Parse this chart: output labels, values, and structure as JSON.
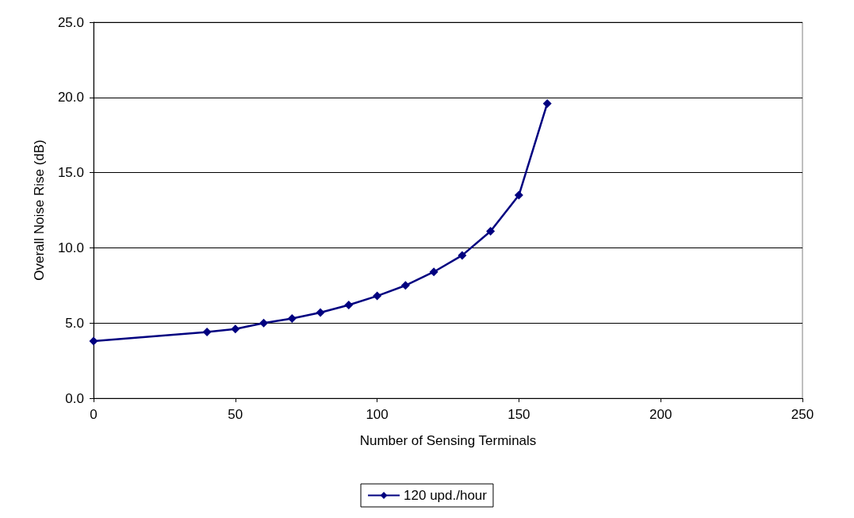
{
  "chart_data": {
    "type": "line",
    "xlabel": "Number of Sensing Terminals",
    "ylabel": "Overall Noise Rise (dB)",
    "x": [
      0,
      40,
      50,
      60,
      70,
      80,
      90,
      100,
      110,
      120,
      130,
      140,
      150,
      160
    ],
    "series": [
      {
        "name": "120 upd./hour",
        "color": "#000080",
        "values": [
          3.8,
          4.4,
          4.6,
          5.0,
          5.3,
          5.7,
          6.2,
          6.8,
          7.5,
          8.4,
          9.5,
          11.1,
          13.5,
          19.6
        ]
      }
    ],
    "xlim": [
      0,
      250
    ],
    "xticks": [
      0,
      50,
      100,
      150,
      200,
      250
    ],
    "ylim": [
      0,
      25
    ],
    "yticks": [
      {
        "value": 0,
        "label": "0.0"
      },
      {
        "value": 5,
        "label": "5.0"
      },
      {
        "value": 10,
        "label": "10.0"
      },
      {
        "value": 15,
        "label": "15.0"
      },
      {
        "value": 20,
        "label": "20.0"
      },
      {
        "value": 25,
        "label": "25.0"
      }
    ],
    "grid": "y",
    "legend": "bottom",
    "marker": "diamond",
    "line_style": "solid"
  }
}
